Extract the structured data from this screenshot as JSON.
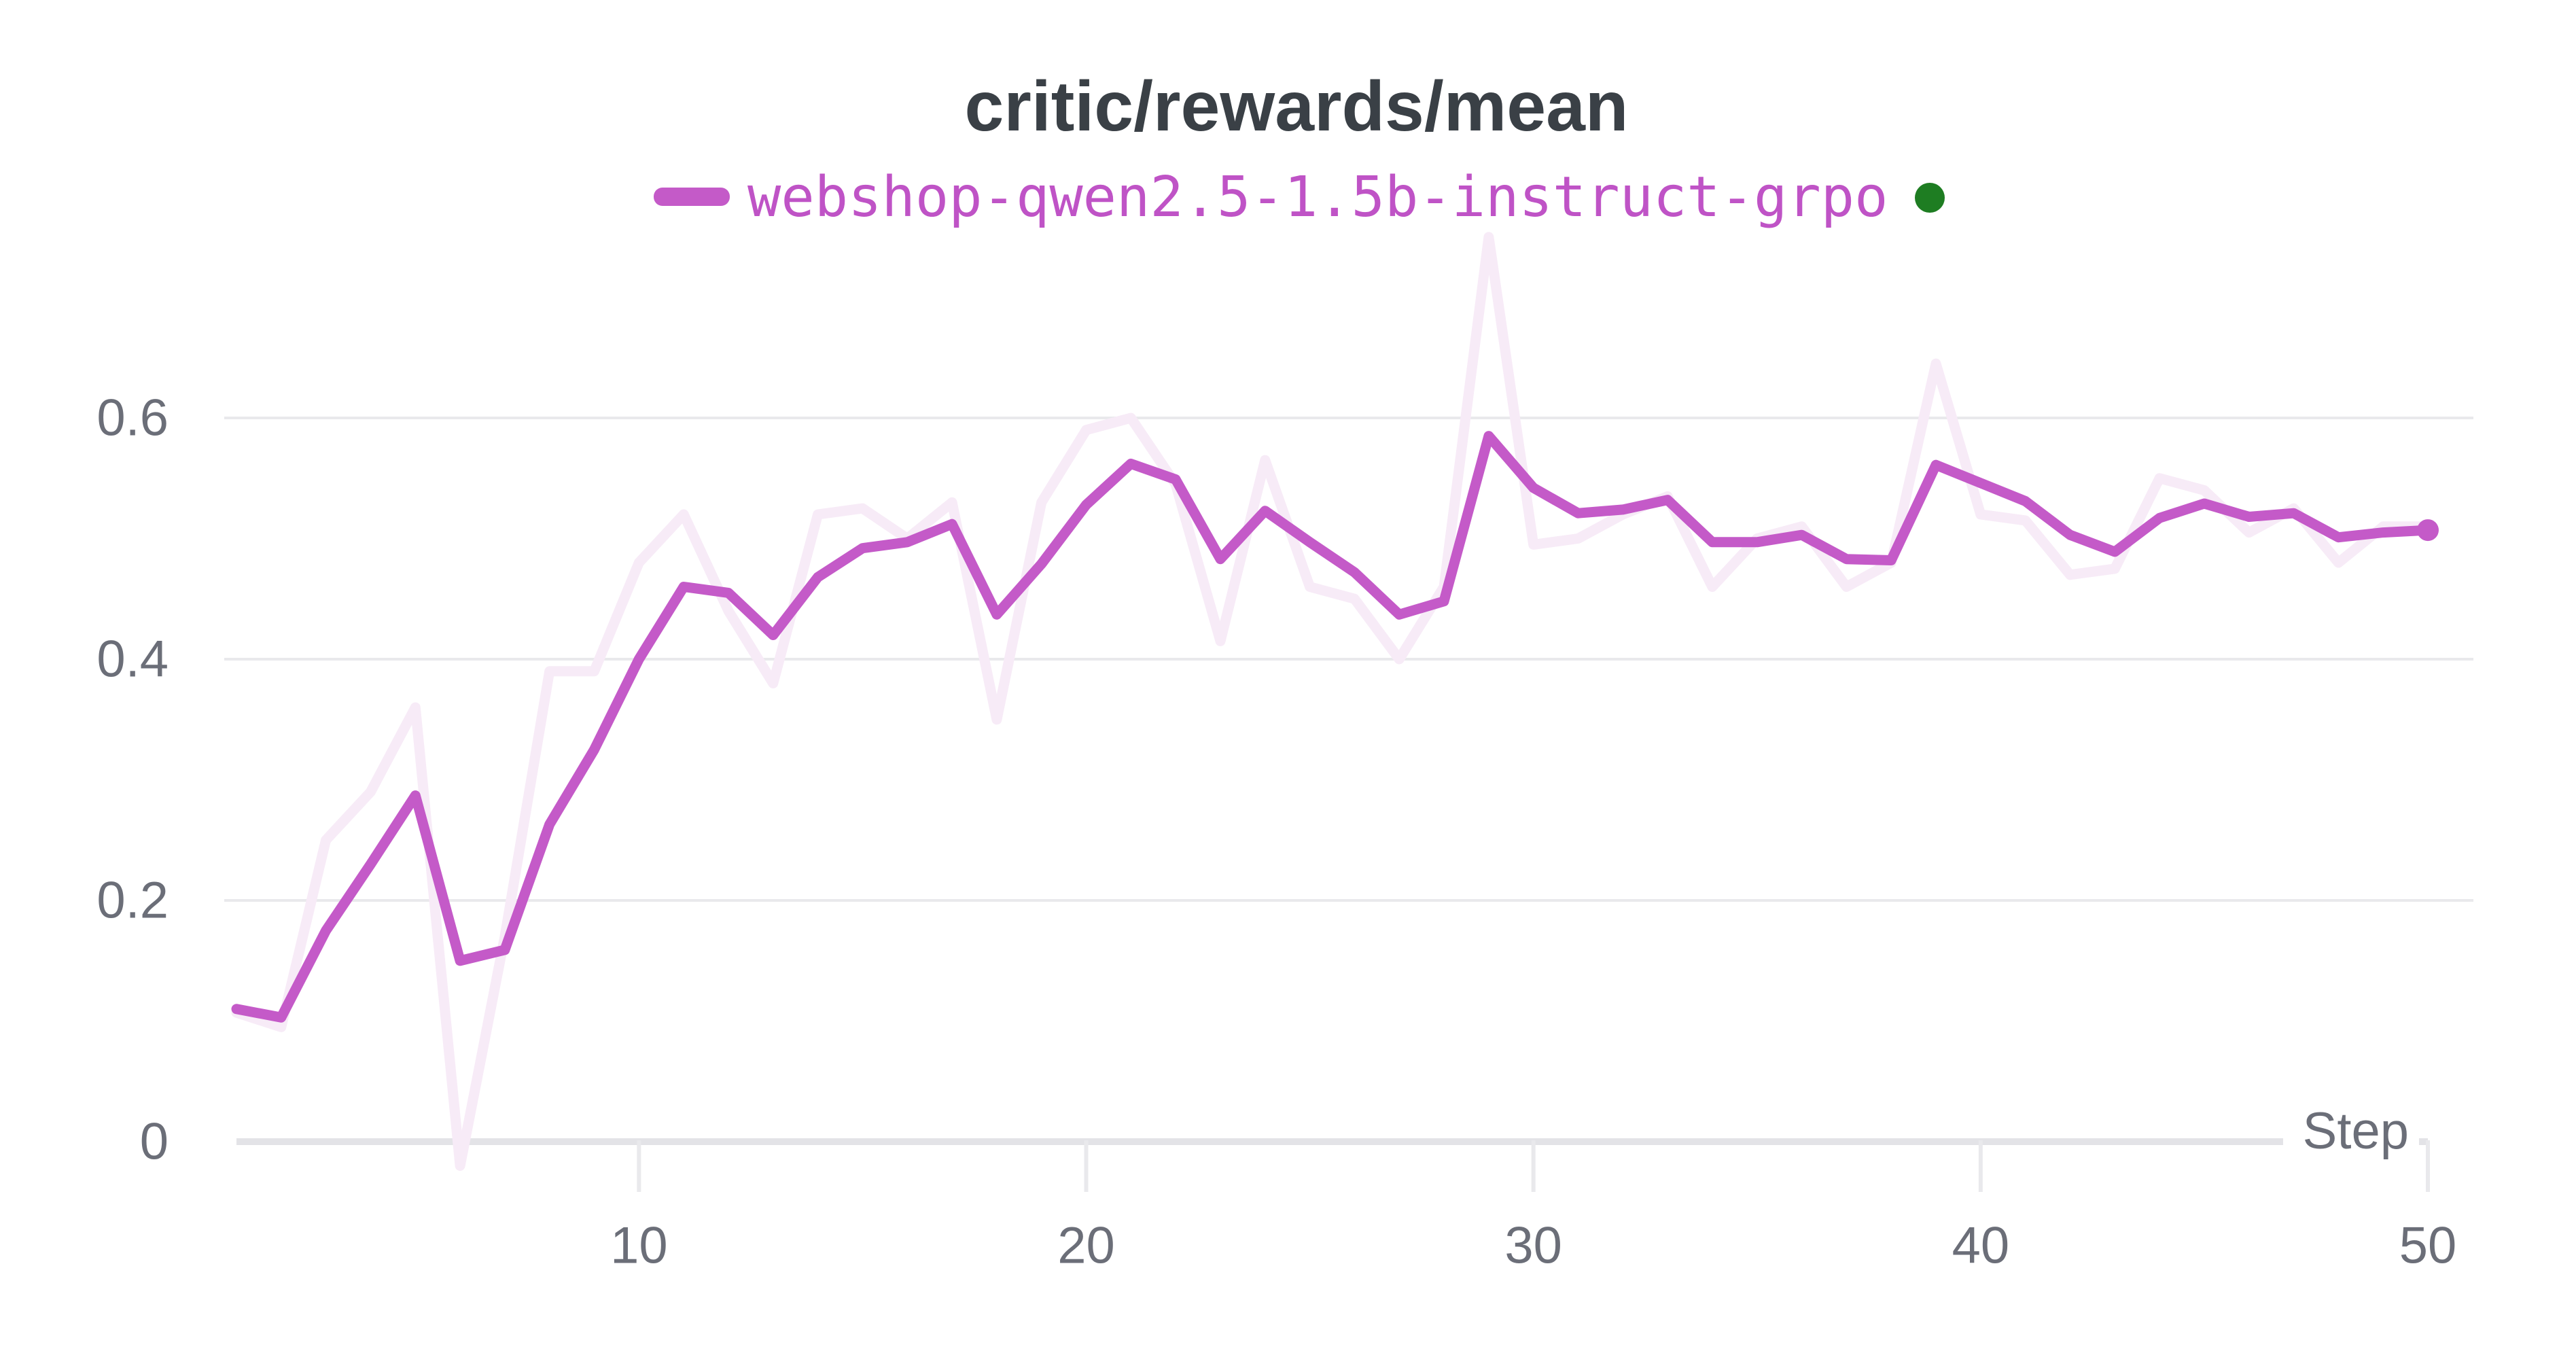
{
  "title": "critic/rewards/mean",
  "legend": {
    "series_label": "webshop-qwen2.5-1.5b-instruct-grpo",
    "swatch_color": "#c45ac8",
    "label_color": "#bf53c6",
    "run_state_color": "#1e7d22"
  },
  "colors": {
    "smoothed_line": "#c45ac8",
    "raw_line": "#f7ebf7",
    "gridline": "#e9e9ec",
    "axis_line": "#e3e3e7",
    "tick_text": "#6b6e78",
    "title_text": "#3a4046",
    "background": "#ffffff"
  },
  "chart_data": {
    "type": "line",
    "title": "critic/rewards/mean",
    "xlabel": "Step",
    "ylabel": "",
    "xlim": [
      1,
      50
    ],
    "ylim": [
      -0.05,
      0.78
    ],
    "grid": "horizontal-only",
    "legend_position": "top-center",
    "end_marker": "dot-on-last-point",
    "x": [
      1,
      2,
      3,
      4,
      5,
      6,
      7,
      8,
      9,
      10,
      11,
      12,
      13,
      14,
      15,
      16,
      17,
      18,
      19,
      20,
      21,
      22,
      23,
      24,
      25,
      26,
      27,
      28,
      29,
      30,
      31,
      32,
      33,
      34,
      35,
      36,
      37,
      38,
      39,
      40,
      41,
      42,
      43,
      44,
      45,
      46,
      47,
      48,
      49,
      50
    ],
    "x_ticks": [
      {
        "value": 10,
        "label": "10"
      },
      {
        "value": 20,
        "label": "20"
      },
      {
        "value": 30,
        "label": "30"
      },
      {
        "value": 40,
        "label": "40"
      },
      {
        "value": 50,
        "label": "50"
      }
    ],
    "y_ticks": [
      {
        "value": 0,
        "label": "0"
      },
      {
        "value": 0.2,
        "label": "0.2"
      },
      {
        "value": 0.4,
        "label": "0.4"
      },
      {
        "value": 0.6,
        "label": "0.6"
      }
    ],
    "series": [
      {
        "name": "webshop-qwen2.5-1.5b-instruct-grpo (original)",
        "role": "raw-unsmoothed",
        "color": "#f7ebf7",
        "values": [
          0.107,
          0.095,
          0.25,
          0.29,
          0.36,
          -0.02,
          0.17,
          0.39,
          0.39,
          0.48,
          0.52,
          0.44,
          0.38,
          0.52,
          0.525,
          0.5,
          0.53,
          0.35,
          0.53,
          0.59,
          0.6,
          0.545,
          0.415,
          0.565,
          0.46,
          0.45,
          0.4,
          0.46,
          0.75,
          0.495,
          0.5,
          0.52,
          0.535,
          0.46,
          0.5,
          0.51,
          0.46,
          0.48,
          0.645,
          0.52,
          0.515,
          0.47,
          0.475,
          0.55,
          0.54,
          0.505,
          0.525,
          0.48,
          0.51,
          0.51
        ]
      },
      {
        "name": "webshop-qwen2.5-1.5b-instruct-grpo",
        "role": "smoothed",
        "color": "#c45ac8",
        "values": [
          0.11,
          0.103,
          0.175,
          0.23,
          0.287,
          0.15,
          0.159,
          0.263,
          0.325,
          0.4,
          0.46,
          0.455,
          0.42,
          0.468,
          0.492,
          0.497,
          0.512,
          0.437,
          0.479,
          0.528,
          0.562,
          0.549,
          0.483,
          0.523,
          0.497,
          0.472,
          0.437,
          0.448,
          0.585,
          0.542,
          0.521,
          0.524,
          0.532,
          0.497,
          0.497,
          0.503,
          0.483,
          0.482,
          0.561,
          0.546,
          0.531,
          0.503,
          0.489,
          0.517,
          0.529,
          0.518,
          0.521,
          0.501,
          0.505,
          0.507
        ]
      }
    ]
  }
}
